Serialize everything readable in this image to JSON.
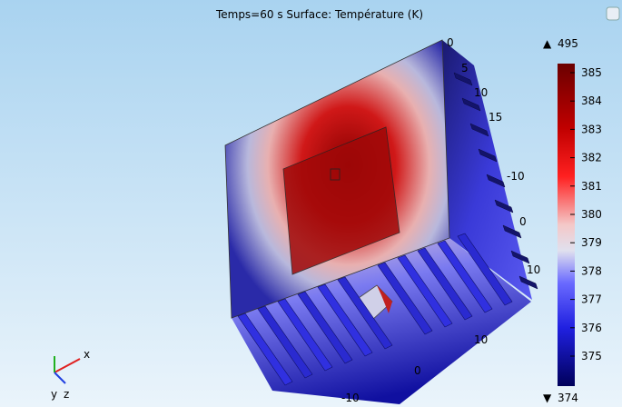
{
  "title": "Temps=60 s   Surface: Température (K)",
  "colorbar": {
    "max_label": "495",
    "min_label": "374",
    "ticks": [
      "385",
      "384",
      "383",
      "382",
      "381",
      "380",
      "379",
      "378",
      "377",
      "376",
      "375"
    ]
  },
  "axis_tick_labels": [
    "0",
    "5",
    "10",
    "15",
    "-10",
    "0",
    "10",
    "10",
    "0",
    "-10"
  ],
  "triad": {
    "x": "x",
    "y": "y",
    "z": "z"
  }
}
